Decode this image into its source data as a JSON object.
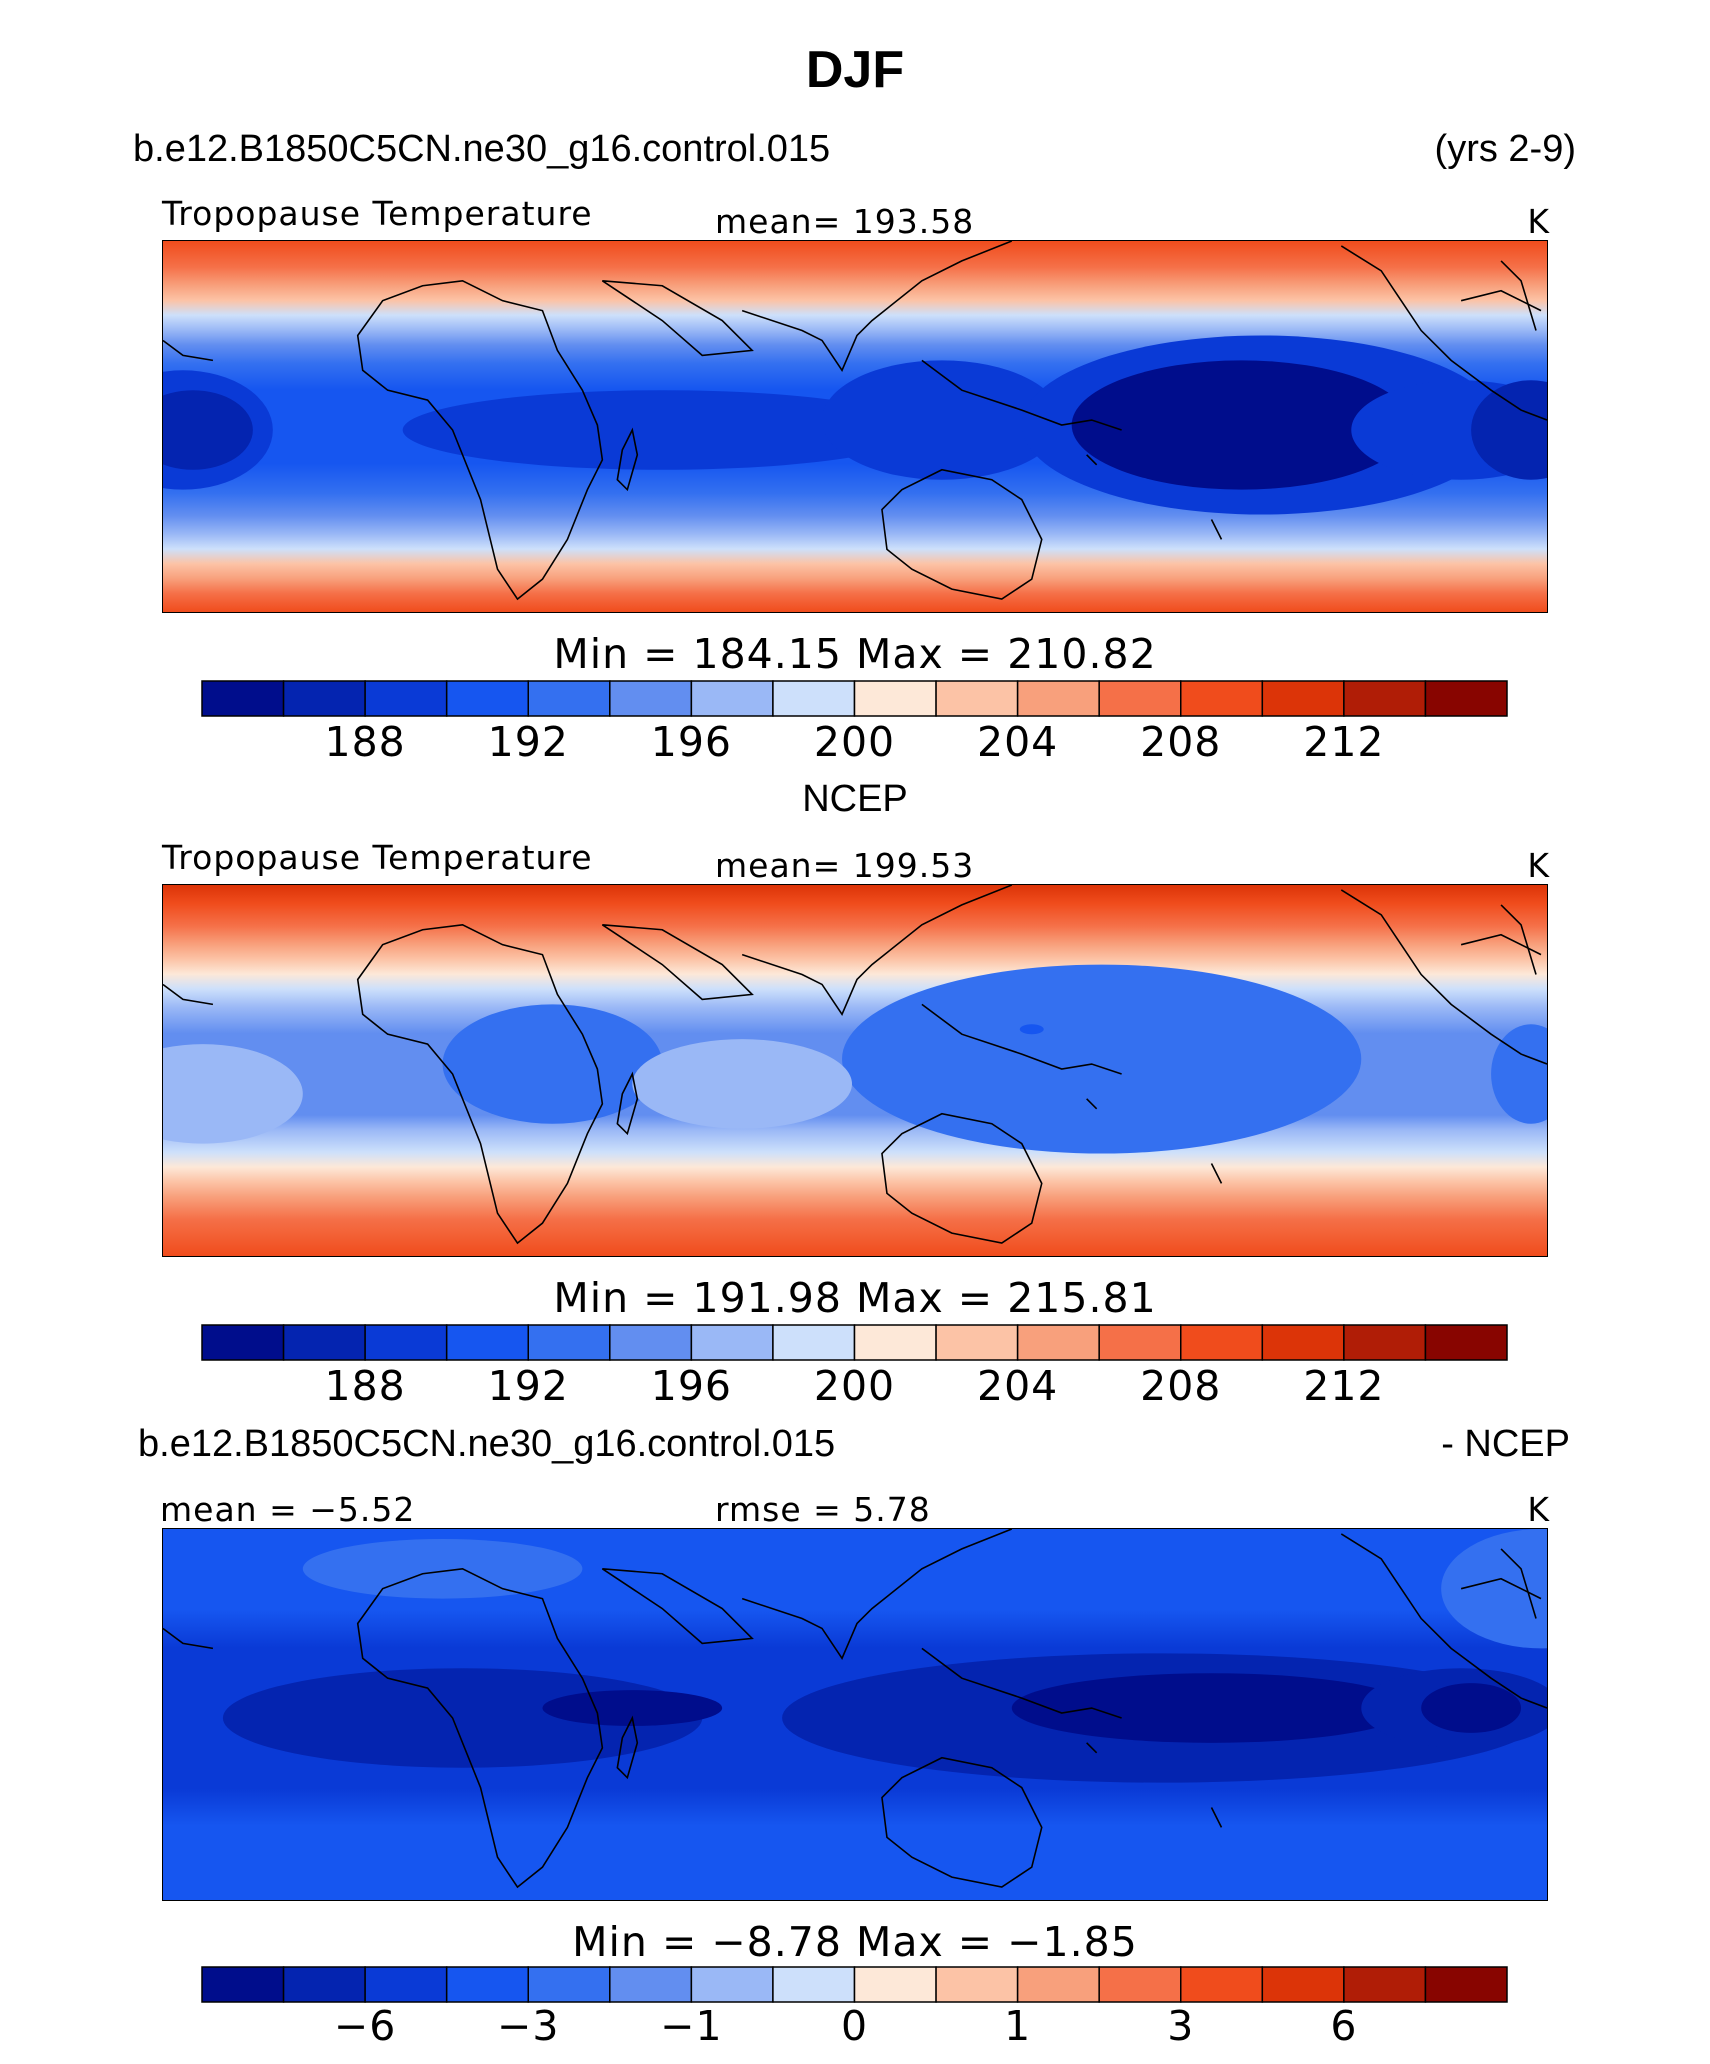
{
  "title": "DJF",
  "header1": {
    "case": "b.e12.B1850C5CN.ne30_g16.control.015",
    "years": "(yrs 2-9)"
  },
  "panel1": {
    "variable": "Tropopause Temperature",
    "mean_label": "mean= 193.58",
    "units": "K",
    "minmax": "Min = 184.15 Max = 210.82"
  },
  "header2": "NCEP",
  "panel2": {
    "variable": "Tropopause Temperature",
    "mean_label": "mean= 199.53",
    "units": "K",
    "minmax": "Min = 191.98 Max = 215.81"
  },
  "header3": {
    "case": "b.e12.B1850C5CN.ne30_g16.control.015",
    "suffix": "- NCEP"
  },
  "panel3": {
    "mean_label": "mean =  −5.52",
    "rmse_label": "rmse =    5.78",
    "units": "K",
    "minmax": "Min =  −8.78 Max =  −1.85"
  },
  "colorbar_colors": [
    "#000d8c",
    "#0424b0",
    "#0a3ad6",
    "#1656f0",
    "#3470f0",
    "#628ef0",
    "#9ab8f6",
    "#cde0fb",
    "#fde8d8",
    "#fcc3a6",
    "#f8a07c",
    "#f57048",
    "#f04c1c",
    "#dc3408",
    "#b01d06",
    "#880500"
  ],
  "colorbar1_ticks": [
    "188",
    "192",
    "196",
    "200",
    "204",
    "208",
    "212"
  ],
  "colorbar2_ticks": [
    "188",
    "192",
    "196",
    "200",
    "204",
    "208",
    "212"
  ],
  "colorbar3_ticks": [
    "−6",
    "−3",
    "−1",
    "0",
    "1",
    "3",
    "6"
  ]
}
